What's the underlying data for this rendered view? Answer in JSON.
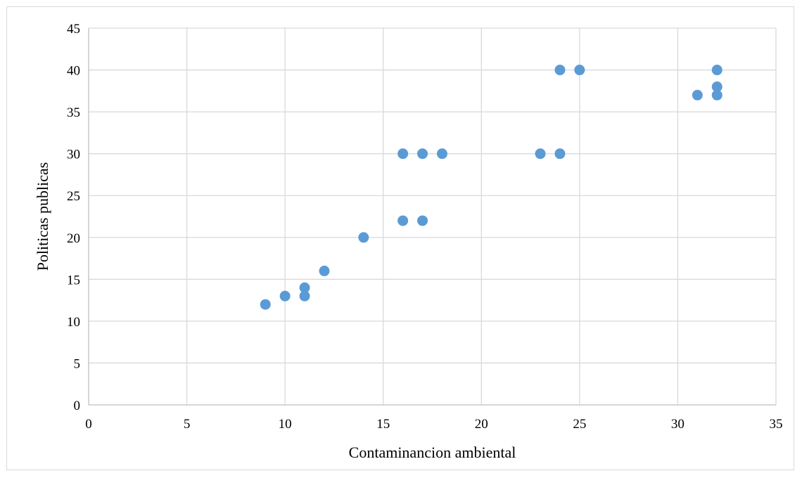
{
  "chart_data": {
    "type": "scatter",
    "title": "",
    "xlabel": "Contaminancion ambiental",
    "ylabel": "Politicas publicas",
    "xlim": [
      0,
      35
    ],
    "ylim": [
      0,
      45
    ],
    "x_ticks": [
      0,
      5,
      10,
      15,
      20,
      25,
      30,
      35
    ],
    "y_ticks": [
      0,
      5,
      10,
      15,
      20,
      25,
      30,
      35,
      40,
      45
    ],
    "grid": true,
    "legend": "none",
    "marker_color": "#5b9bd5",
    "grid_color": "#d9d9d9",
    "series": [
      {
        "points": [
          {
            "x": 9,
            "y": 12
          },
          {
            "x": 10,
            "y": 13
          },
          {
            "x": 11,
            "y": 14
          },
          {
            "x": 11,
            "y": 13
          },
          {
            "x": 12,
            "y": 16
          },
          {
            "x": 14,
            "y": 20
          },
          {
            "x": 16,
            "y": 22
          },
          {
            "x": 17,
            "y": 22
          },
          {
            "x": 16,
            "y": 30
          },
          {
            "x": 17,
            "y": 30
          },
          {
            "x": 18,
            "y": 30
          },
          {
            "x": 23,
            "y": 30
          },
          {
            "x": 24,
            "y": 30
          },
          {
            "x": 24,
            "y": 40
          },
          {
            "x": 25,
            "y": 40
          },
          {
            "x": 31,
            "y": 37
          },
          {
            "x": 32,
            "y": 37
          },
          {
            "x": 32,
            "y": 38
          },
          {
            "x": 32,
            "y": 40
          }
        ]
      }
    ]
  }
}
